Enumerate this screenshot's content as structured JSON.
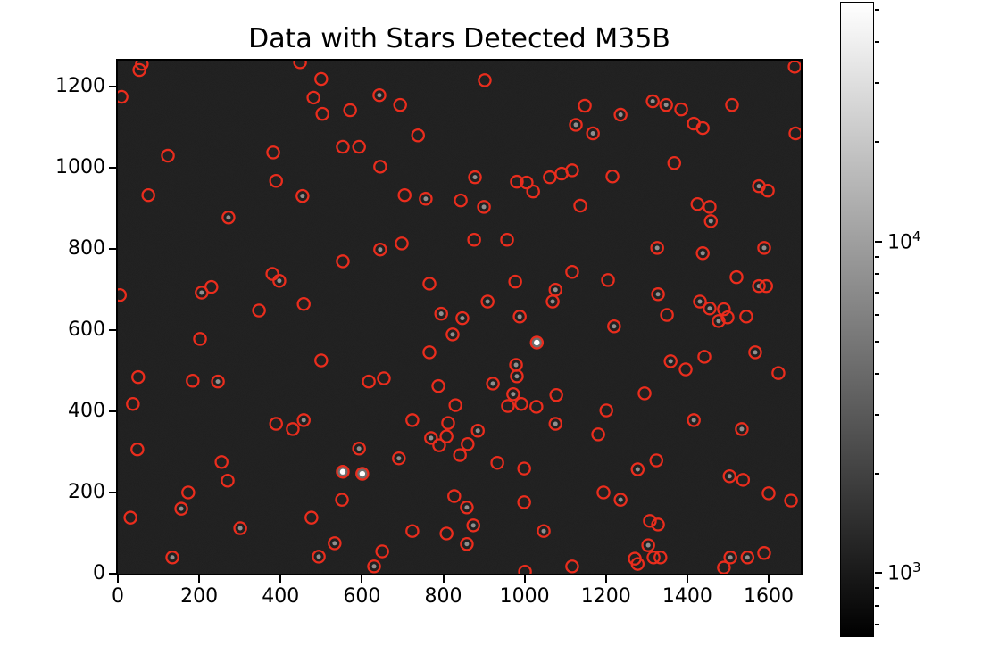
{
  "title": "Data with Stars Detected M35B",
  "colors": {
    "figure_bg": "#ffffff",
    "image_bg": "#1c1c1c",
    "detection_ring": "#ea2d1d",
    "star_core_gray": "#8f8f8f",
    "star_core_bright": "#ffffff",
    "axis": "#000000"
  },
  "chart_data": {
    "type": "scatter",
    "title": "Data with Stars Detected M35B",
    "description": "Grayscale astronomical CCD frame (log intensity stretch) shown with imshow; detected stars are marked with open red circles; vertical grayscale colorbar on the right uses a log scale.",
    "grid": false,
    "legend": false,
    "x_axis": {
      "min": 0,
      "max": 1679,
      "ticks": [
        0,
        200,
        400,
        600,
        800,
        1000,
        1200,
        1400,
        1600
      ]
    },
    "y_axis": {
      "min": 0,
      "max": 1263,
      "ticks": [
        0,
        200,
        400,
        600,
        800,
        1000,
        1200
      ]
    },
    "colorbar": {
      "scale": "log",
      "value_min": 650,
      "value_max": 52000,
      "log_min": 2.809,
      "log_max": 4.718,
      "gradient_top": "#ffffff",
      "gradient_bottom": "#000000",
      "major_ticks": [
        {
          "value": 1000,
          "base": "10",
          "exp": "3"
        },
        {
          "value": 10000,
          "base": "10",
          "exp": "4"
        }
      ]
    },
    "star_format": "[x, y, core] in data coords; core: 0=faint, 1=visible gray core, 2=saturated white core",
    "stars": [
      [
        59,
        1255,
        0
      ],
      [
        53,
        1240,
        0
      ],
      [
        9,
        1174,
        0
      ],
      [
        448,
        1259,
        0
      ],
      [
        500,
        1218,
        0
      ],
      [
        481,
        1172,
        0
      ],
      [
        503,
        1132,
        0
      ],
      [
        553,
        1051,
        0
      ],
      [
        382,
        1037,
        0
      ],
      [
        123,
        1029,
        0
      ],
      [
        389,
        967,
        0
      ],
      [
        454,
        930,
        1
      ],
      [
        75,
        932,
        0
      ],
      [
        272,
        877,
        1
      ],
      [
        902,
        1215,
        0
      ],
      [
        643,
        1178,
        1
      ],
      [
        694,
        1154,
        0
      ],
      [
        571,
        1141,
        0
      ],
      [
        738,
        1079,
        0
      ],
      [
        593,
        1051,
        0
      ],
      [
        645,
        1002,
        0
      ],
      [
        878,
        976,
        1
      ],
      [
        981,
        965,
        0
      ],
      [
        1005,
        963,
        0
      ],
      [
        1021,
        941,
        0
      ],
      [
        1062,
        976,
        0
      ],
      [
        1091,
        985,
        0
      ],
      [
        1117,
        993,
        0
      ],
      [
        705,
        932,
        0
      ],
      [
        757,
        923,
        1
      ],
      [
        843,
        919,
        0
      ],
      [
        900,
        903,
        1
      ],
      [
        1126,
        1105,
        1
      ],
      [
        1137,
        906,
        0
      ],
      [
        1664,
        1248,
        0
      ],
      [
        1148,
        1152,
        0
      ],
      [
        1315,
        1163,
        1
      ],
      [
        1348,
        1154,
        1
      ],
      [
        1385,
        1143,
        0
      ],
      [
        1510,
        1154,
        0
      ],
      [
        1236,
        1130,
        1
      ],
      [
        1416,
        1108,
        0
      ],
      [
        1438,
        1097,
        0
      ],
      [
        1168,
        1084,
        1
      ],
      [
        1666,
        1084,
        0
      ],
      [
        1368,
        1011,
        0
      ],
      [
        1216,
        978,
        0
      ],
      [
        1576,
        954,
        1
      ],
      [
        1598,
        943,
        0
      ],
      [
        1425,
        910,
        0
      ],
      [
        1455,
        903,
        0
      ],
      [
        1458,
        868,
        1
      ],
      [
        553,
        769,
        0
      ],
      [
        380,
        738,
        0
      ],
      [
        397,
        721,
        1
      ],
      [
        230,
        706,
        0
      ],
      [
        206,
        692,
        1
      ],
      [
        5,
        686,
        0
      ],
      [
        457,
        664,
        0
      ],
      [
        347,
        648,
        0
      ],
      [
        202,
        578,
        0
      ],
      [
        500,
        525,
        0
      ],
      [
        50,
        484,
        0
      ],
      [
        184,
        475,
        0
      ],
      [
        246,
        473,
        1
      ],
      [
        37,
        418,
        0
      ],
      [
        876,
        822,
        0
      ],
      [
        957,
        822,
        0
      ],
      [
        698,
        813,
        0
      ],
      [
        645,
        798,
        1
      ],
      [
        1117,
        743,
        0
      ],
      [
        766,
        714,
        0
      ],
      [
        977,
        719,
        0
      ],
      [
        1076,
        699,
        1
      ],
      [
        909,
        670,
        1
      ],
      [
        1069,
        670,
        1
      ],
      [
        795,
        640,
        1
      ],
      [
        847,
        629,
        1
      ],
      [
        988,
        633,
        1
      ],
      [
        823,
        589,
        1
      ],
      [
        1030,
        569,
        2
      ],
      [
        766,
        545,
        0
      ],
      [
        979,
        514,
        1
      ],
      [
        981,
        486,
        1
      ],
      [
        617,
        473,
        0
      ],
      [
        654,
        481,
        0
      ],
      [
        788,
        462,
        0
      ],
      [
        922,
        468,
        1
      ],
      [
        972,
        442,
        1
      ],
      [
        1078,
        440,
        0
      ],
      [
        1326,
        802,
        1
      ],
      [
        1438,
        789,
        1
      ],
      [
        1589,
        802,
        1
      ],
      [
        1205,
        723,
        0
      ],
      [
        1521,
        730,
        0
      ],
      [
        1576,
        708,
        1
      ],
      [
        1594,
        708,
        0
      ],
      [
        1328,
        688,
        1
      ],
      [
        1431,
        670,
        1
      ],
      [
        1455,
        653,
        1
      ],
      [
        1490,
        651,
        0
      ],
      [
        1499,
        631,
        0
      ],
      [
        1477,
        622,
        1
      ],
      [
        1545,
        633,
        0
      ],
      [
        1350,
        637,
        0
      ],
      [
        1220,
        609,
        1
      ],
      [
        1567,
        545,
        1
      ],
      [
        1442,
        534,
        0
      ],
      [
        1359,
        523,
        1
      ],
      [
        1396,
        503,
        0
      ],
      [
        1624,
        494,
        0
      ],
      [
        1295,
        444,
        0
      ],
      [
        389,
        369,
        0
      ],
      [
        457,
        378,
        1
      ],
      [
        430,
        356,
        0
      ],
      [
        48,
        306,
        0
      ],
      [
        255,
        275,
        0
      ],
      [
        270,
        229,
        0
      ],
      [
        553,
        251,
        2
      ],
      [
        173,
        200,
        0
      ],
      [
        156,
        160,
        1
      ],
      [
        31,
        138,
        0
      ],
      [
        551,
        182,
        0
      ],
      [
        476,
        138,
        0
      ],
      [
        301,
        112,
        1
      ],
      [
        533,
        75,
        1
      ],
      [
        494,
        42,
        1
      ],
      [
        134,
        40,
        1
      ],
      [
        830,
        415,
        0
      ],
      [
        959,
        413,
        0
      ],
      [
        992,
        418,
        0
      ],
      [
        1029,
        411,
        0
      ],
      [
        724,
        378,
        0
      ],
      [
        812,
        371,
        0
      ],
      [
        1076,
        369,
        1
      ],
      [
        885,
        352,
        1
      ],
      [
        770,
        334,
        1
      ],
      [
        808,
        338,
        0
      ],
      [
        790,
        316,
        0
      ],
      [
        860,
        319,
        0
      ],
      [
        841,
        292,
        0
      ],
      [
        593,
        308,
        1
      ],
      [
        691,
        284,
        1
      ],
      [
        601,
        246,
        2
      ],
      [
        933,
        273,
        0
      ],
      [
        999,
        259,
        0
      ],
      [
        827,
        191,
        0
      ],
      [
        999,
        176,
        0
      ],
      [
        858,
        163,
        1
      ],
      [
        874,
        119,
        1
      ],
      [
        724,
        105,
        0
      ],
      [
        808,
        99,
        0
      ],
      [
        1047,
        105,
        1
      ],
      [
        858,
        73,
        1
      ],
      [
        650,
        55,
        0
      ],
      [
        630,
        18,
        1
      ],
      [
        1001,
        5,
        0
      ],
      [
        1201,
        402,
        0
      ],
      [
        1416,
        378,
        1
      ],
      [
        1534,
        356,
        1
      ],
      [
        1181,
        343,
        0
      ],
      [
        1324,
        279,
        0
      ],
      [
        1278,
        257,
        1
      ],
      [
        1504,
        240,
        1
      ],
      [
        1537,
        231,
        0
      ],
      [
        1600,
        198,
        0
      ],
      [
        1194,
        200,
        0
      ],
      [
        1655,
        180,
        0
      ],
      [
        1236,
        182,
        1
      ],
      [
        1308,
        130,
        0
      ],
      [
        1328,
        121,
        0
      ],
      [
        1304,
        70,
        1
      ],
      [
        1271,
        37,
        0
      ],
      [
        1278,
        24,
        0
      ],
      [
        1317,
        40,
        0
      ],
      [
        1334,
        40,
        0
      ],
      [
        1506,
        40,
        1
      ],
      [
        1548,
        40,
        1
      ],
      [
        1589,
        51,
        0
      ],
      [
        1490,
        15,
        0
      ],
      [
        1117,
        18,
        0
      ]
    ]
  }
}
